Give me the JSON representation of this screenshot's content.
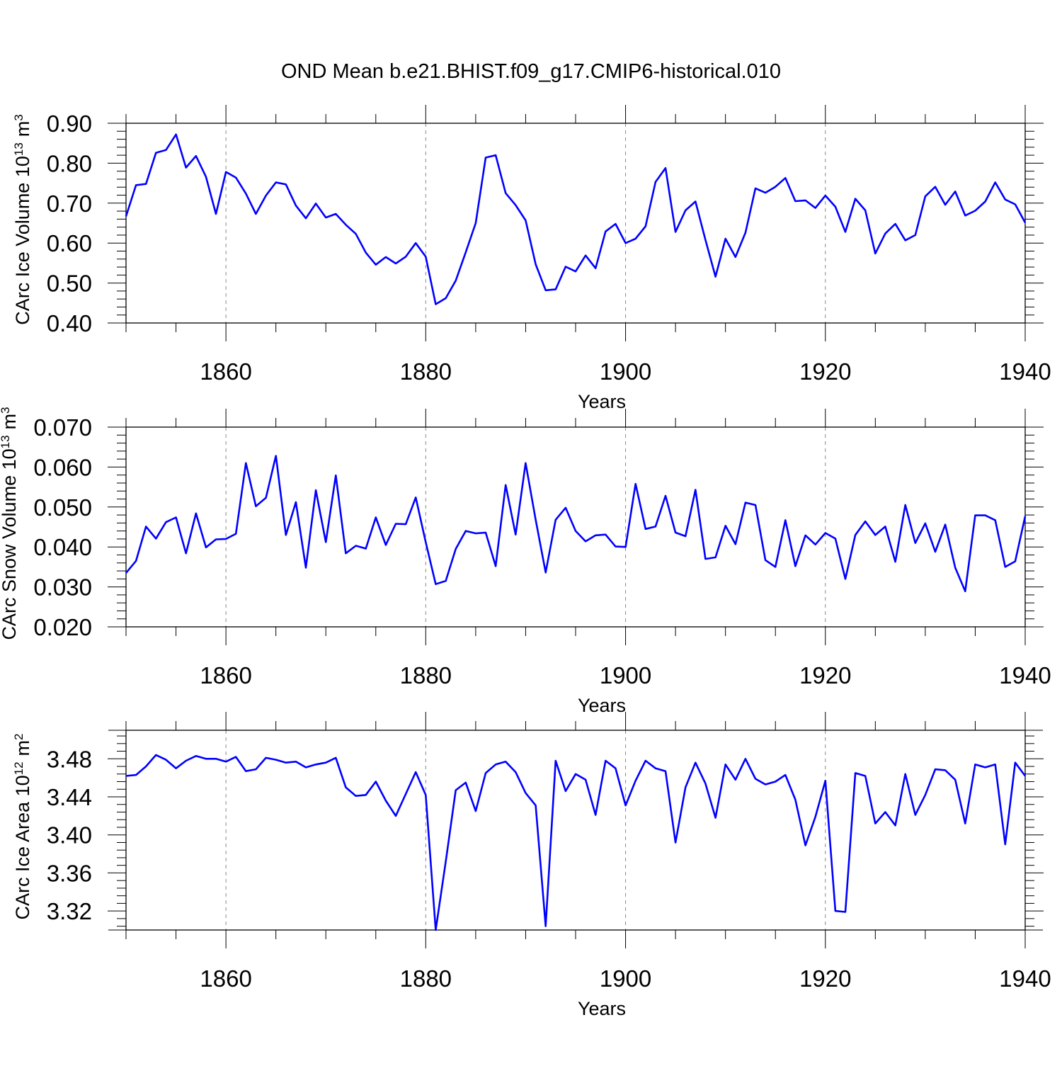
{
  "title": "OND Mean b.e21.BHIST.f09_g17.CMIP6-historical.010",
  "line_color": "#0000ff",
  "grid_color": "#888888",
  "chart_data": [
    {
      "type": "line",
      "ylabel_main": "CArc Ice Volume 10",
      "ylabel_exp": "13",
      "ylabel_unit": "m",
      "ylabel_unit_exp": "3",
      "xlabel": "Years",
      "xlim": [
        1850,
        1940
      ],
      "ylim": [
        0.4,
        0.9
      ],
      "yticks": [
        "0.40",
        "0.50",
        "0.60",
        "0.70",
        "0.80",
        "0.90"
      ],
      "xticks": [
        "1860",
        "1880",
        "1900",
        "1920",
        "1940"
      ],
      "x_start": 1850,
      "values": [
        0.667,
        0.745,
        0.748,
        0.826,
        0.833,
        0.872,
        0.789,
        0.818,
        0.766,
        0.673,
        0.778,
        0.764,
        0.724,
        0.673,
        0.719,
        0.752,
        0.747,
        0.694,
        0.662,
        0.699,
        0.664,
        0.673,
        0.646,
        0.623,
        0.576,
        0.546,
        0.565,
        0.549,
        0.566,
        0.6,
        0.566,
        0.447,
        0.462,
        0.506,
        0.577,
        0.65,
        0.814,
        0.82,
        0.725,
        0.695,
        0.657,
        0.547,
        0.482,
        0.484,
        0.541,
        0.529,
        0.569,
        0.537,
        0.629,
        0.648,
        0.6,
        0.611,
        0.642,
        0.753,
        0.788,
        0.628,
        0.682,
        0.704,
        0.608,
        0.516,
        0.611,
        0.565,
        0.626,
        0.737,
        0.726,
        0.741,
        0.763,
        0.705,
        0.707,
        0.688,
        0.719,
        0.691,
        0.628,
        0.711,
        0.682,
        0.574,
        0.624,
        0.648,
        0.607,
        0.62,
        0.717,
        0.741,
        0.696,
        0.729,
        0.669,
        0.681,
        0.704,
        0.752,
        0.709,
        0.697,
        0.651
      ]
    },
    {
      "type": "line",
      "ylabel_main": "CArc Snow Volume 10",
      "ylabel_exp": "13",
      "ylabel_unit": "m",
      "ylabel_unit_exp": "3",
      "xlabel": "Years",
      "xlim": [
        1850,
        1940
      ],
      "ylim": [
        0.02,
        0.07
      ],
      "yticks": [
        "0.020",
        "0.030",
        "0.040",
        "0.050",
        "0.060",
        "0.070"
      ],
      "xticks": [
        "1860",
        "1880",
        "1900",
        "1920",
        "1940"
      ],
      "x_start": 1850,
      "values": [
        0.0335,
        0.0365,
        0.0451,
        0.0421,
        0.0462,
        0.0474,
        0.0384,
        0.0484,
        0.0399,
        0.0419,
        0.042,
        0.0433,
        0.061,
        0.0502,
        0.0523,
        0.0628,
        0.043,
        0.0512,
        0.0348,
        0.0542,
        0.0412,
        0.0579,
        0.0384,
        0.0403,
        0.0396,
        0.0474,
        0.0405,
        0.0458,
        0.0457,
        0.0524,
        0.0412,
        0.0307,
        0.0315,
        0.0395,
        0.044,
        0.0434,
        0.0436,
        0.0352,
        0.0555,
        0.0431,
        0.061,
        0.0468,
        0.0336,
        0.0468,
        0.0498,
        0.044,
        0.0414,
        0.0429,
        0.0431,
        0.0401,
        0.04,
        0.0558,
        0.0445,
        0.0451,
        0.0528,
        0.0436,
        0.0427,
        0.0543,
        0.037,
        0.0374,
        0.0453,
        0.0407,
        0.0511,
        0.0505,
        0.0367,
        0.035,
        0.0467,
        0.0352,
        0.0429,
        0.0406,
        0.0435,
        0.0421,
        0.032,
        0.043,
        0.0464,
        0.043,
        0.0451,
        0.0363,
        0.0505,
        0.041,
        0.0459,
        0.0388,
        0.0456,
        0.0348,
        0.0289,
        0.0479,
        0.0479,
        0.0467,
        0.035,
        0.0364,
        0.0477
      ]
    },
    {
      "type": "line",
      "ylabel_main": "CArc Ice Area 10",
      "ylabel_exp": "12",
      "ylabel_unit": "m",
      "ylabel_unit_exp": "2",
      "xlabel": "Years",
      "xlim": [
        1850,
        1940
      ],
      "ylim": [
        3.3,
        3.51
      ],
      "yticks": [
        "3.32",
        "3.36",
        "3.40",
        "3.44",
        "3.48"
      ],
      "ytick_values": [
        3.32,
        3.36,
        3.4,
        3.44,
        3.48
      ],
      "xticks": [
        "1860",
        "1880",
        "1900",
        "1920",
        "1940"
      ],
      "x_start": 1850,
      "values": [
        3.462,
        3.463,
        3.472,
        3.484,
        3.479,
        3.47,
        3.478,
        3.483,
        3.48,
        3.48,
        3.477,
        3.482,
        3.467,
        3.469,
        3.481,
        3.479,
        3.476,
        3.477,
        3.471,
        3.474,
        3.476,
        3.481,
        3.45,
        3.441,
        3.442,
        3.456,
        3.436,
        3.42,
        3.443,
        3.466,
        3.442,
        3.3,
        3.372,
        3.447,
        3.455,
        3.425,
        3.465,
        3.474,
        3.477,
        3.466,
        3.444,
        3.431,
        3.304,
        3.478,
        3.446,
        3.464,
        3.458,
        3.421,
        3.478,
        3.47,
        3.431,
        3.457,
        3.478,
        3.47,
        3.467,
        3.392,
        3.45,
        3.476,
        3.454,
        3.418,
        3.474,
        3.458,
        3.48,
        3.459,
        3.453,
        3.456,
        3.463,
        3.437,
        3.389,
        3.419,
        3.457,
        3.32,
        3.319,
        3.465,
        3.462,
        3.412,
        3.424,
        3.41,
        3.464,
        3.421,
        3.442,
        3.469,
        3.468,
        3.458,
        3.412,
        3.474,
        3.471,
        3.474,
        3.39,
        3.476,
        3.462
      ]
    }
  ]
}
